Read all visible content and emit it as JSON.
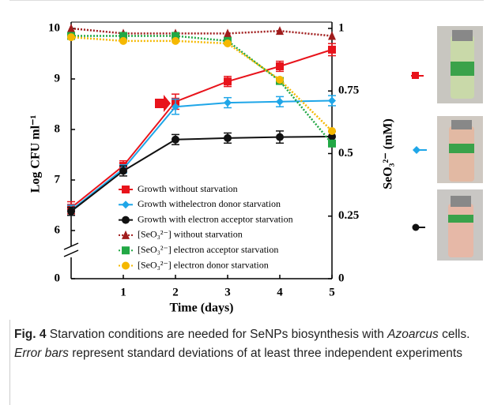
{
  "chart_data": {
    "type": "line",
    "xlabel": "Time (days)",
    "ylabel": "Log CFU ml⁻¹",
    "y2label": "SeO₃²⁻  (mM)",
    "xlim": [
      0,
      5
    ],
    "xticks": [
      1,
      2,
      3,
      4,
      5
    ],
    "ylim": [
      0,
      10
    ],
    "yticks": [
      0,
      6,
      7,
      8,
      9,
      10
    ],
    "y_break": [
      0,
      6
    ],
    "y2lim": [
      0,
      1
    ],
    "y2ticks": [
      0,
      0.25,
      0.5,
      0.75,
      1
    ],
    "x": [
      0,
      1,
      2,
      3,
      4,
      5
    ],
    "series": [
      {
        "name": "Growth without starvation",
        "color": "#e8131b",
        "marker": "square",
        "values": [
          6.45,
          7.28,
          8.55,
          8.95,
          9.25,
          9.58
        ],
        "errors": [
          0.12,
          0.1,
          0.15,
          0.1,
          0.1,
          0.12
        ]
      },
      {
        "name": "Growth  withelectron donor starvation",
        "color": "#1fa6e8",
        "marker": "diamond",
        "values": [
          6.4,
          7.22,
          8.45,
          8.53,
          8.55,
          8.57
        ],
        "errors": [
          0.1,
          0.08,
          0.15,
          0.1,
          0.1,
          0.1
        ]
      },
      {
        "name": "Growth with electron acceptor starvation",
        "color": "#111111",
        "marker": "circle",
        "values": [
          6.38,
          7.18,
          7.8,
          7.83,
          7.85,
          7.86
        ],
        "errors": [
          0.08,
          0.1,
          0.1,
          0.1,
          0.12,
          0.1
        ]
      },
      {
        "name": "[SeO₃²⁻] without starvation",
        "color": "#a01c1c",
        "marker": "triangle",
        "dash": true,
        "axis": "y2",
        "values": [
          1.0,
          0.98,
          0.98,
          0.98,
          0.99,
          0.97
        ]
      },
      {
        "name": "[SeO₃²⁻] electron acceptor starvation",
        "color": "#22a845",
        "marker": "square",
        "dash": true,
        "axis": "y2",
        "values": [
          0.97,
          0.97,
          0.97,
          0.95,
          0.79,
          0.54
        ]
      },
      {
        "name": "[SeO₃²⁻] electron donor starvation",
        "color": "#f5b800",
        "marker": "circle",
        "dash": true,
        "axis": "y2",
        "values": [
          0.965,
          0.95,
          0.95,
          0.94,
          0.795,
          0.59
        ]
      }
    ]
  },
  "caption": {
    "label": "Fig. 4",
    "parts": [
      {
        "text": " Starvation conditions are needed for SeNPs biosynthesis with "
      },
      {
        "text": "Azoarcus",
        "italic": true
      },
      {
        "text": " cells. "
      },
      {
        "text": "Error bars",
        "italic": true
      },
      {
        "text": " represent standard deviations of at least three independent experiments"
      }
    ]
  }
}
